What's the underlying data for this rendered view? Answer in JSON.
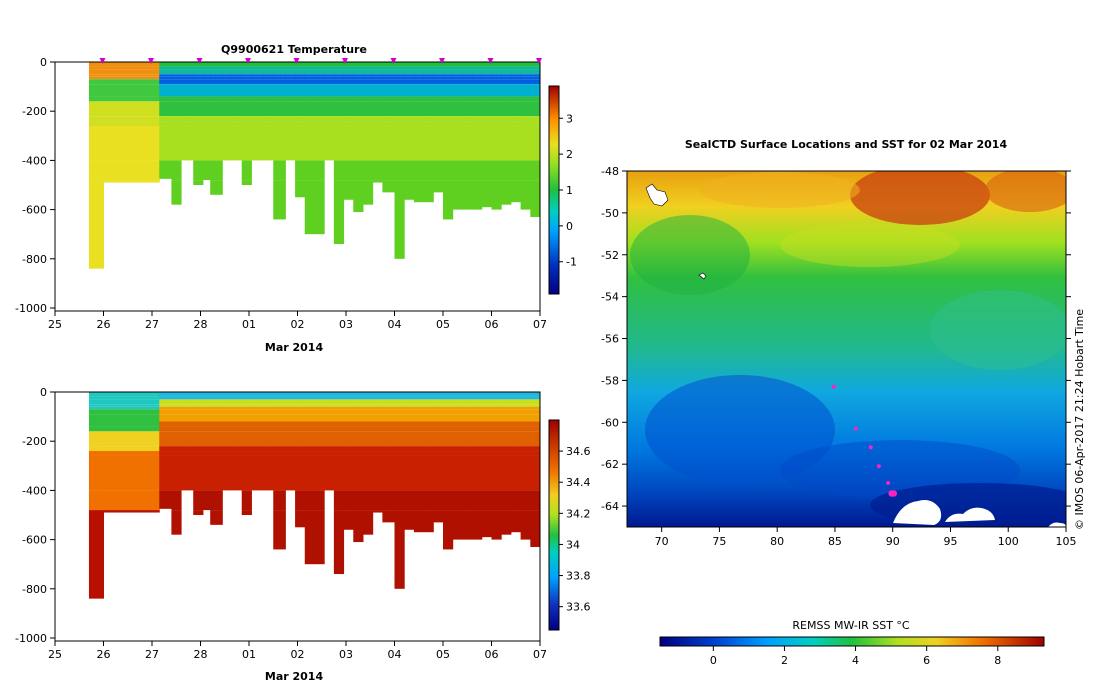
{
  "chart_data": [
    {
      "type": "heatmap",
      "id": "temperature-section",
      "title": "Q9900621  Temperature",
      "xlabel": "Mar 2014",
      "x_ticks": [
        "25",
        "26",
        "27",
        "28",
        "01",
        "02",
        "03",
        "04",
        "05",
        "06",
        "07"
      ],
      "y_ticks": [
        "0",
        "-200",
        "-400",
        "-600",
        "-800",
        "-1000"
      ],
      "ylim": [
        -1000,
        0
      ],
      "colorbar": {
        "min": -1.9,
        "max": 3.9,
        "ticks": [
          3,
          2,
          1,
          0,
          -1
        ],
        "tick_labels": [
          "3",
          "2",
          "1",
          "0",
          "-1"
        ]
      },
      "profile_days": [
        0.7,
        1.0,
        2.15,
        2.4,
        2.6,
        2.85,
        3.05,
        3.2,
        3.45,
        3.6,
        3.85,
        4.05,
        4.3,
        4.5,
        4.75,
        4.95,
        5.15,
        5.35,
        5.55,
        5.75,
        5.95,
        6.15,
        6.35,
        6.55,
        6.75,
        7.0,
        7.2,
        7.4,
        7.6,
        7.8,
        8.0,
        8.2,
        8.4,
        8.6,
        8.8,
        9.0,
        9.2,
        9.4,
        9.6,
        9.8,
        10.0
      ],
      "profile_depths": [
        840,
        490,
        475,
        580,
        400,
        500,
        480,
        540,
        400,
        400,
        500,
        400,
        400,
        640,
        400,
        550,
        700,
        700,
        400,
        740,
        560,
        610,
        580,
        490,
        530,
        800,
        560,
        570,
        570,
        530,
        640,
        600,
        600,
        600,
        590,
        600,
        580,
        570,
        600,
        630,
        600
      ],
      "marker_days": [
        1.0,
        2.0,
        3.0,
        4.0,
        5.0,
        6.0,
        7.0,
        8.0,
        9.0,
        10.0
      ]
    },
    {
      "type": "heatmap",
      "id": "salinity-section",
      "title": "",
      "xlabel": "Mar 2014",
      "x_ticks": [
        "25",
        "26",
        "27",
        "28",
        "01",
        "02",
        "03",
        "04",
        "05",
        "06",
        "07"
      ],
      "y_ticks": [
        "0",
        "-200",
        "-400",
        "-600",
        "-800",
        "-1000"
      ],
      "ylim": [
        -1000,
        0
      ],
      "colorbar": {
        "min": 33.45,
        "max": 34.8,
        "ticks": [
          34.6,
          34.4,
          34.2,
          34,
          33.8,
          33.6
        ],
        "tick_labels": [
          "34.6",
          "34.4",
          "34.2",
          "34",
          "33.8",
          "33.6"
        ]
      }
    },
    {
      "type": "heatmap",
      "id": "sst-map",
      "title": "SealCTD Surface Locations and SST for 02 Mar 2014",
      "x_ticks": [
        "70",
        "75",
        "80",
        "85",
        "90",
        "95",
        "100",
        "105"
      ],
      "y_ticks": [
        "-48",
        "-50",
        "-52",
        "-54",
        "-56",
        "-58",
        "-60",
        "-62",
        "-64"
      ],
      "xlim": [
        67,
        105
      ],
      "ylim": [
        -65,
        -48
      ],
      "colorbar": {
        "label": "REMSS MW-IR SST °C",
        "min": -1.5,
        "max": 9.3,
        "ticks": [
          0,
          2,
          4,
          6,
          8
        ],
        "tick_labels": [
          "0",
          "2",
          "4",
          "6",
          "8"
        ]
      },
      "track_points": [
        [
          84.9,
          -58.3
        ],
        [
          86.8,
          -60.3
        ],
        [
          88.1,
          -61.2
        ],
        [
          88.8,
          -62.1
        ],
        [
          89.6,
          -62.9
        ],
        [
          90.1,
          -63.4
        ],
        [
          89.9,
          -63.4
        ]
      ],
      "credit": "© IMOS 06-Apr-2017 21:24 Hobart Time"
    }
  ]
}
